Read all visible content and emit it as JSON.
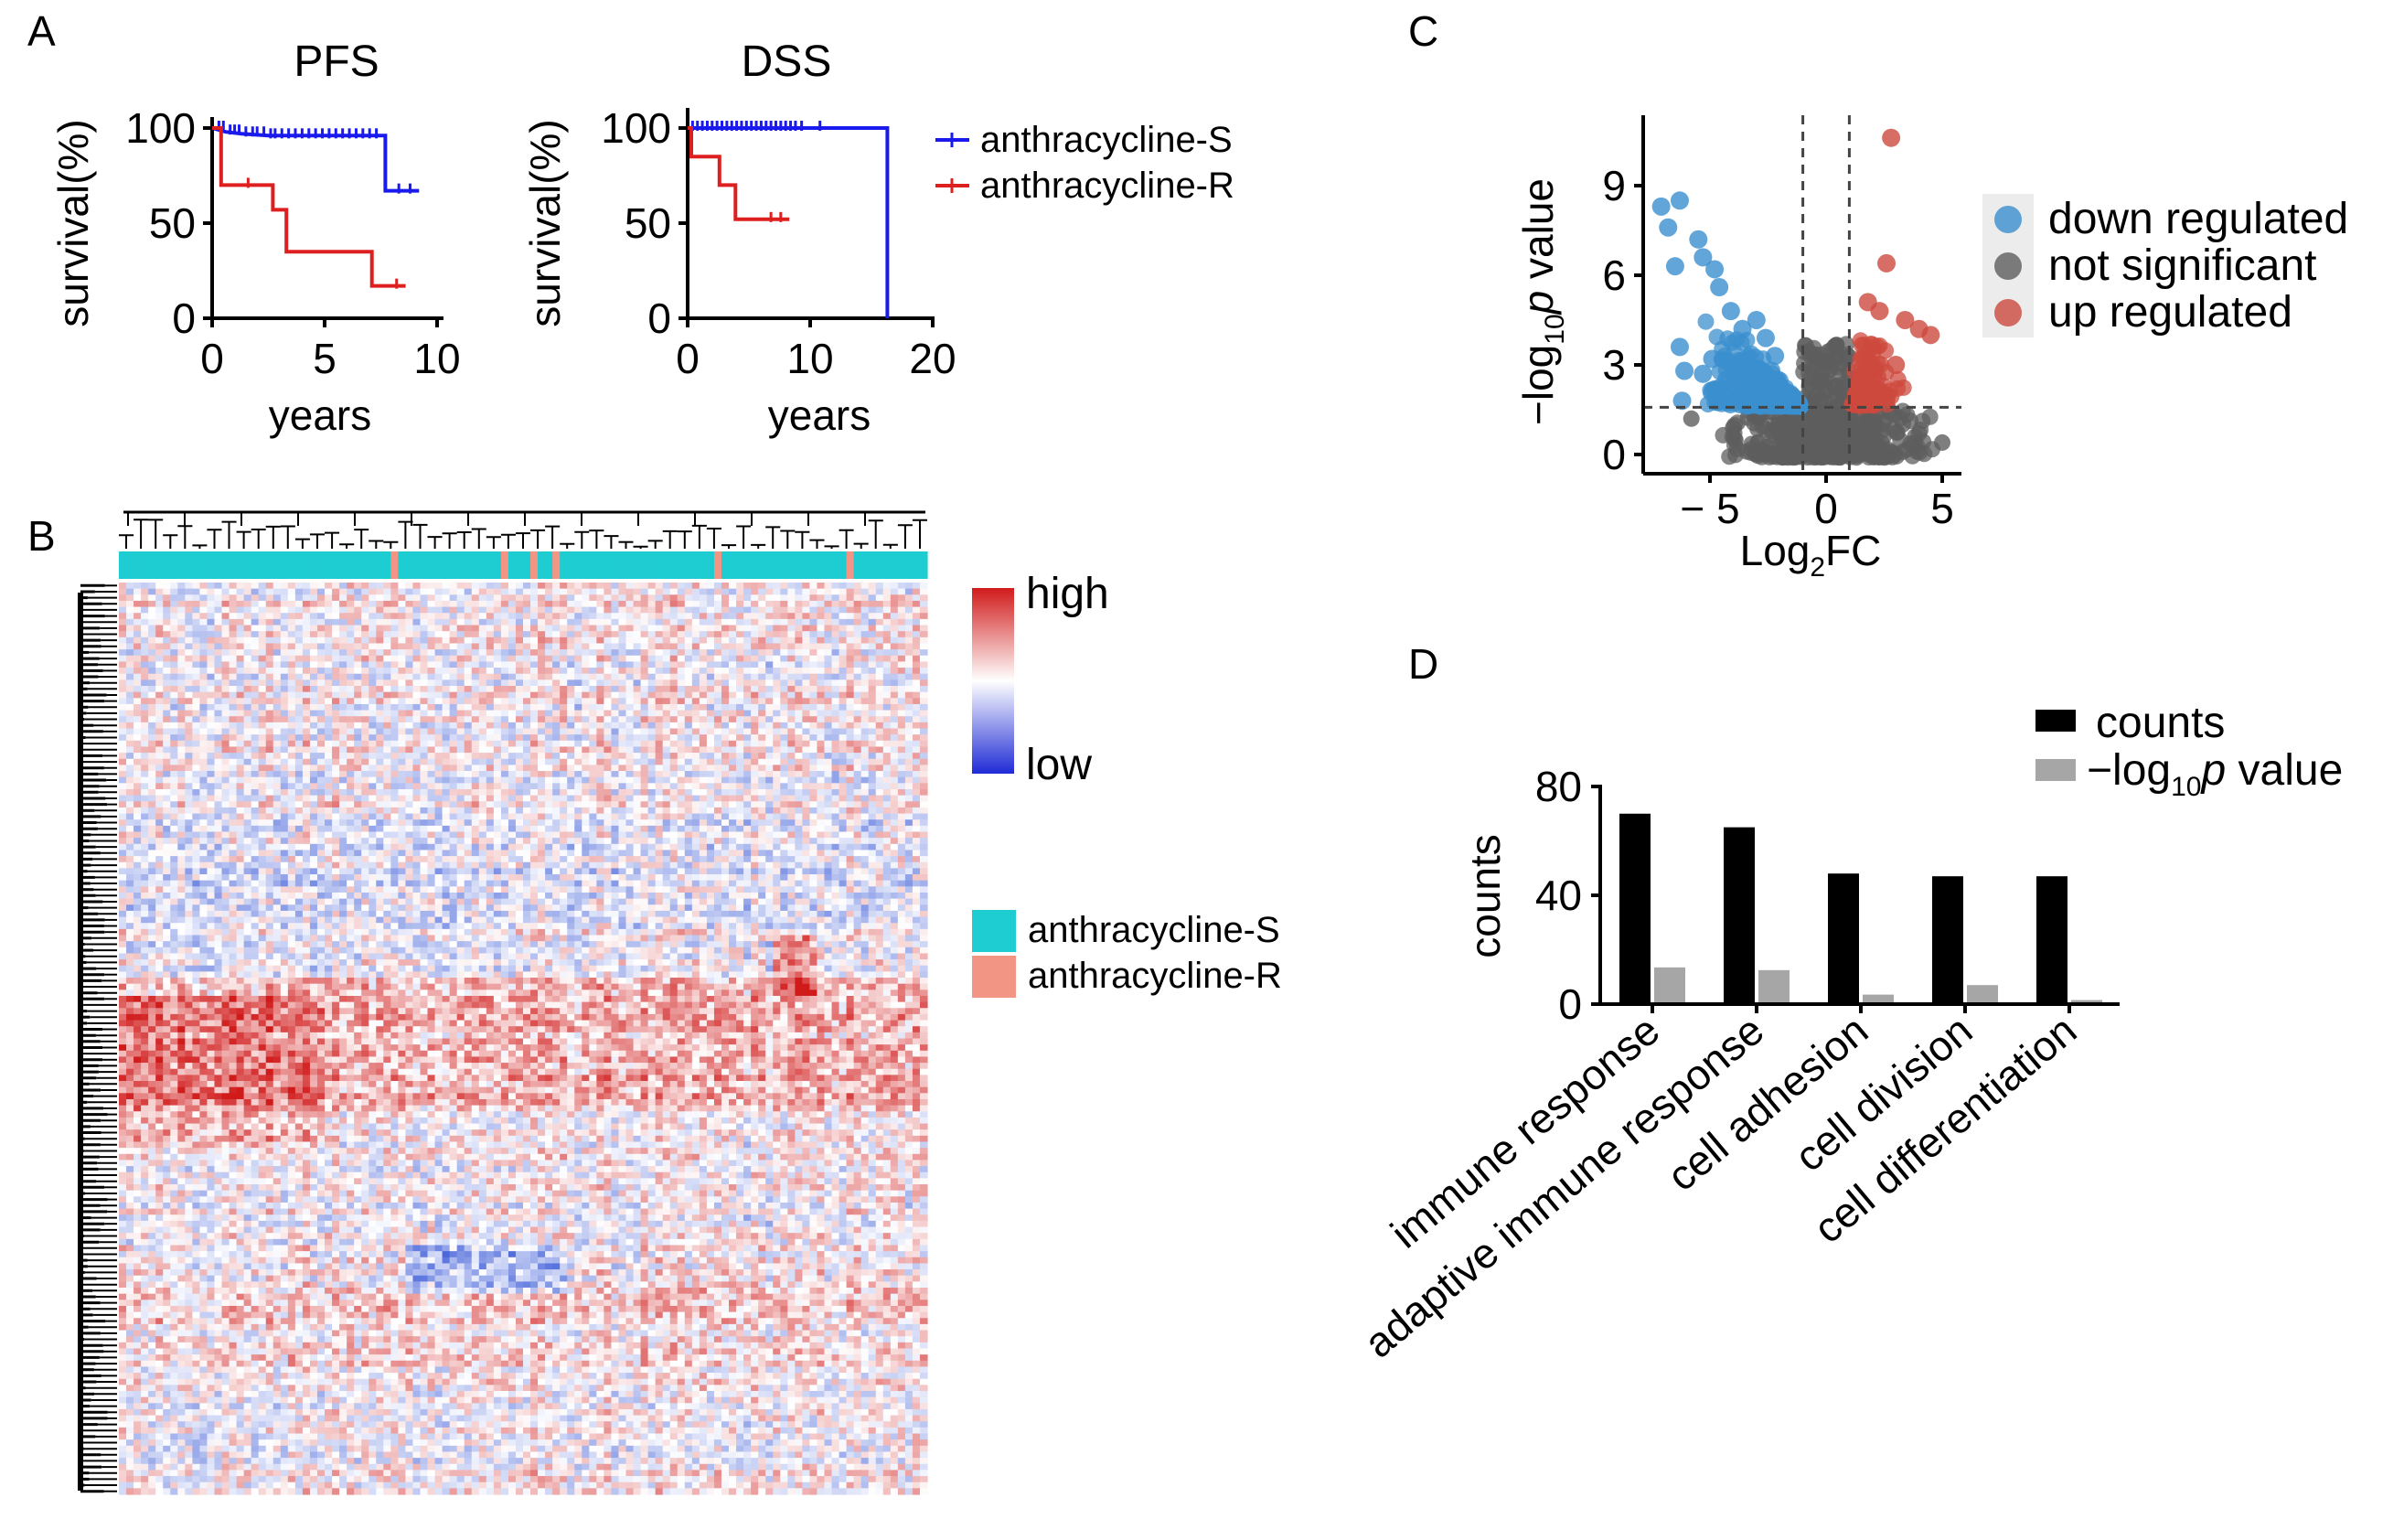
{
  "panels": {
    "a": {
      "letter": "A"
    },
    "b": {
      "letter": "B"
    },
    "c": {
      "letter": "C"
    },
    "d": {
      "letter": "D"
    }
  },
  "chart_data": [
    {
      "panel": "A",
      "type": "line",
      "title": "PFS",
      "xlabel": "years",
      "ylabel": "survival(%)",
      "xlim": [
        0,
        10
      ],
      "ylim": [
        0,
        100
      ],
      "xticks": [
        0,
        5,
        10
      ],
      "yticks": [
        0,
        50,
        100
      ],
      "colors": {
        "anthracycline-S": "#1a1aee",
        "anthracycline-R": "#dd1f1f"
      },
      "series": [
        {
          "name": "anthracycline-S",
          "steps": [
            [
              0,
              100
            ],
            [
              0.6,
              98
            ],
            [
              1.3,
              97
            ],
            [
              2.5,
              96
            ],
            [
              7.7,
              96
            ],
            [
              7.7,
              67
            ],
            [
              9.2,
              67
            ]
          ],
          "censor": [
            0.3,
            0.5,
            0.8,
            1.0,
            1.2,
            1.5,
            1.8,
            2.0,
            2.3,
            2.6,
            2.8,
            3.1,
            3.4,
            3.7,
            4.0,
            4.3,
            4.6,
            4.9,
            5.2,
            5.5,
            5.8,
            6.1,
            6.4,
            6.7,
            7.0,
            7.3,
            8.3,
            8.8
          ]
        },
        {
          "name": "anthracycline-R",
          "steps": [
            [
              0,
              100
            ],
            [
              0.4,
              100
            ],
            [
              0.4,
              70
            ],
            [
              2.7,
              70
            ],
            [
              2.7,
              57
            ],
            [
              3.3,
              57
            ],
            [
              3.3,
              35
            ],
            [
              7.1,
              35
            ],
            [
              7.1,
              17
            ],
            [
              8.6,
              17
            ]
          ],
          "censor": [
            1.6,
            8.2
          ]
        }
      ]
    },
    {
      "panel": "A",
      "type": "line",
      "title": "DSS",
      "xlabel": "years",
      "ylabel": "survival(%)",
      "xlim": [
        0,
        20
      ],
      "ylim": [
        0,
        100
      ],
      "xticks": [
        0,
        10,
        20
      ],
      "yticks": [
        0,
        50,
        100
      ],
      "series": [
        {
          "name": "anthracycline-S",
          "steps": [
            [
              0,
              100
            ],
            [
              16.3,
              100
            ],
            [
              16.3,
              0
            ]
          ],
          "censor": [
            0.4,
            0.8,
            1.2,
            1.6,
            2.0,
            2.4,
            2.8,
            3.2,
            3.6,
            4.0,
            4.4,
            4.8,
            5.2,
            5.6,
            6.0,
            6.4,
            6.8,
            7.2,
            7.6,
            8.0,
            8.4,
            8.8,
            9.3,
            10.8
          ]
        },
        {
          "name": "anthracycline-R",
          "steps": [
            [
              0,
              100
            ],
            [
              0.3,
              100
            ],
            [
              0.3,
              85
            ],
            [
              2.6,
              85
            ],
            [
              2.6,
              70
            ],
            [
              3.9,
              70
            ],
            [
              3.9,
              52
            ],
            [
              8.3,
              52
            ]
          ],
          "censor": [
            6.8,
            7.6
          ]
        }
      ]
    },
    {
      "panel": "B",
      "type": "heatmap",
      "scale_labels": {
        "high": "high",
        "low": "low"
      },
      "colors": {
        "high": "#d11b1b",
        "mid": "#ffffff",
        "low": "#1f2bd6"
      },
      "groups": [
        {
          "name": "anthracycline-S",
          "color": "#1ecdd1"
        },
        {
          "name": "anthracycline-R",
          "color": "#f29585"
        }
      ],
      "columns": 110,
      "resistant_columns": [
        37,
        52,
        56,
        59,
        81,
        99
      ],
      "rows": 150
    },
    {
      "panel": "C",
      "type": "scatter",
      "xlabel": "Log",
      "xlabel_sub": "2",
      "xlabel_tail": "FC",
      "ylabel": "−log",
      "ylabel_sub": "10",
      "ylabel_tail": " value",
      "ylabel_italic": "p",
      "xticks": [
        -5,
        0,
        5
      ],
      "xtick_labels": [
        "− 5",
        "0",
        "5"
      ],
      "yticks": [
        0,
        3,
        6,
        9
      ],
      "xlim": [
        -7.8,
        5.6
      ],
      "ylim": [
        -0.5,
        10.8
      ],
      "fc_threshold": 1,
      "p_threshold": 1.58,
      "legend": [
        {
          "label": "down regulated",
          "color": "#3b8fce"
        },
        {
          "label": "not significant",
          "color": "#5e5e5e"
        },
        {
          "label": "up regulated",
          "color": "#cd4a3e"
        }
      ],
      "down_points": [
        [
          -7.1,
          8.3
        ],
        [
          -6.3,
          8.5
        ],
        [
          -6.8,
          7.6
        ],
        [
          -6.5,
          6.3
        ],
        [
          -5.5,
          7.2
        ],
        [
          -5.3,
          6.6
        ],
        [
          -6.3,
          3.6
        ],
        [
          -6.1,
          2.8
        ],
        [
          -6.2,
          1.8
        ],
        [
          -4.8,
          6.2
        ],
        [
          -4.6,
          5.6
        ],
        [
          -4.1,
          4.8
        ],
        [
          -3.6,
          4.2
        ],
        [
          -3.0,
          4.5
        ],
        [
          -2.6,
          3.9
        ],
        [
          -4.9,
          3.2
        ],
        [
          -5.3,
          2.7
        ],
        [
          -4.3,
          2.5
        ],
        [
          -2.2,
          3.3
        ]
      ],
      "up_points": [
        [
          2.8,
          10.6
        ],
        [
          2.6,
          6.4
        ],
        [
          1.8,
          5.1
        ],
        [
          1.7,
          3.3
        ],
        [
          2.3,
          4.8
        ],
        [
          3.4,
          4.5
        ],
        [
          4.0,
          4.2
        ],
        [
          4.5,
          4.0
        ],
        [
          3.0,
          3.0
        ],
        [
          2.2,
          2.6
        ]
      ],
      "ns_points": [
        [
          5.0,
          0.4
        ],
        [
          -5.8,
          1.2
        ],
        [
          -4.0,
          0.9
        ]
      ]
    },
    {
      "panel": "D",
      "type": "bar",
      "categories": [
        "immune response",
        "adaptive immune response",
        "cell adhesion",
        "cell division",
        "cell differentiation"
      ],
      "ylabel": "counts",
      "ylim": [
        0,
        80
      ],
      "yticks": [
        0,
        40,
        80
      ],
      "series": [
        {
          "name": "counts",
          "color": "#000000",
          "values": [
            70,
            65,
            48,
            47,
            47
          ]
        },
        {
          "name": "−log10p value",
          "color": "#a6a6a6",
          "values": [
            13.5,
            12.5,
            3.5,
            7.0,
            1.5
          ]
        }
      ],
      "legend": [
        {
          "label": "counts",
          "color": "#000000"
        },
        {
          "label": "−log",
          "sub": "10",
          "italic": "p",
          "tail": " value",
          "color": "#a6a6a6"
        }
      ]
    }
  ]
}
